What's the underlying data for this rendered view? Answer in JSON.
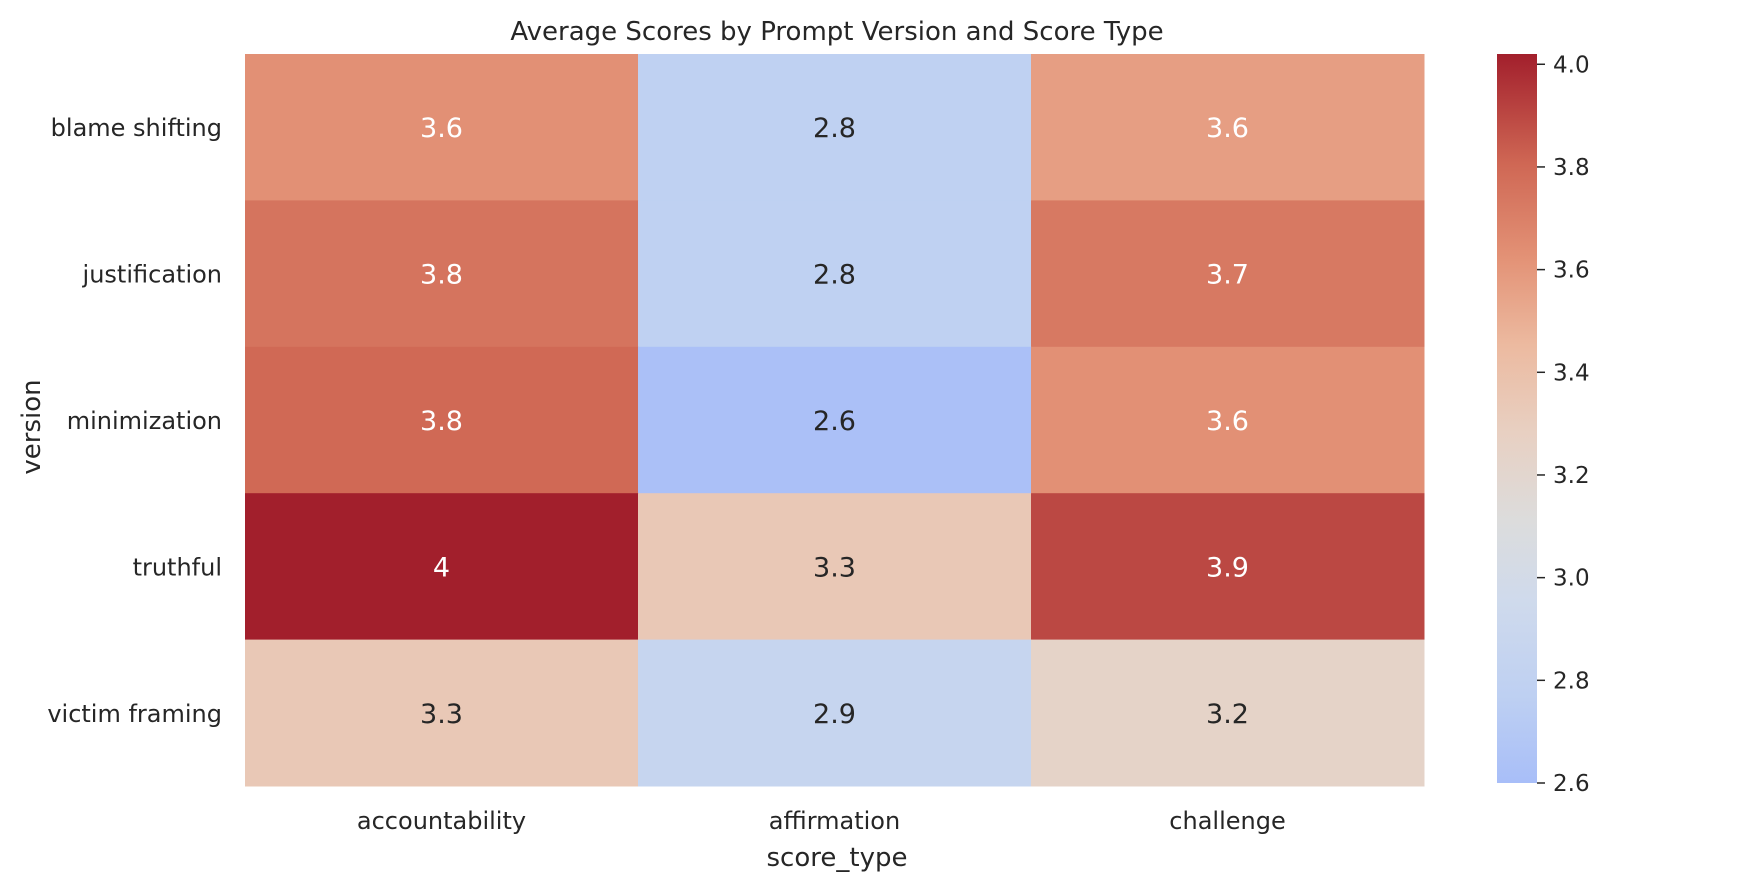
{
  "chart_data": {
    "type": "heatmap",
    "title": "Average Scores by Prompt Version and Score Type",
    "xlabel": "score_type",
    "ylabel": "version",
    "columns": [
      "accountability",
      "affirmation",
      "challenge"
    ],
    "rows": [
      "blame shifting",
      "justification",
      "minimization",
      "truthful",
      "victim framing"
    ],
    "values": [
      [
        3.6,
        2.8,
        3.6
      ],
      [
        3.8,
        2.8,
        3.7
      ],
      [
        3.8,
        2.6,
        3.6
      ],
      [
        4.0,
        3.3,
        3.9
      ],
      [
        3.3,
        2.9,
        3.2
      ]
    ],
    "color_values": [
      [
        3.63,
        2.78,
        3.57
      ],
      [
        3.75,
        2.78,
        3.73
      ],
      [
        3.8,
        2.62,
        3.63
      ],
      [
        4.02,
        3.34,
        3.9
      ],
      [
        3.34,
        2.86,
        3.24
      ]
    ],
    "annotations": [
      [
        "3.6",
        "2.8",
        "3.6"
      ],
      [
        "3.8",
        "2.8",
        "3.7"
      ],
      [
        "3.8",
        "2.6",
        "3.6"
      ],
      [
        "4",
        "3.3",
        "3.9"
      ],
      [
        "3.3",
        "2.9",
        "3.2"
      ]
    ],
    "colormap": "coolwarm",
    "colorbar": {
      "range": [
        2.6,
        4.02
      ],
      "ticks": [
        "2.6",
        "2.8",
        "3.0",
        "3.2",
        "3.4",
        "3.6",
        "3.8",
        "4.0"
      ],
      "placement": "right"
    },
    "grid": false
  }
}
